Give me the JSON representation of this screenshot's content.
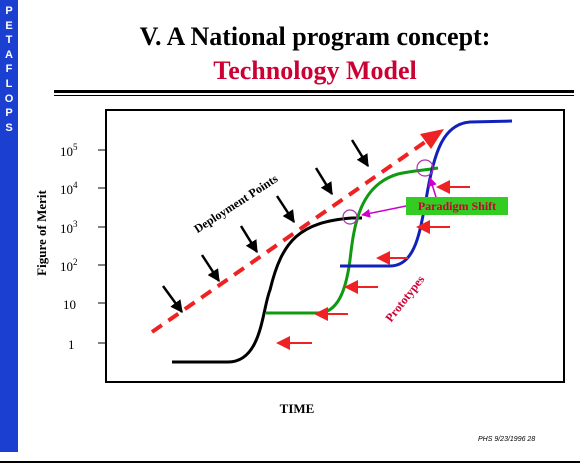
{
  "sidebar": {
    "letters": [
      "P",
      "E",
      "T",
      "A",
      "F",
      "L",
      "O",
      "P",
      "S"
    ],
    "color": "#1b3fd0"
  },
  "slide": {
    "title_line1": "V. A National program concept:",
    "title_line2": "Technology Model",
    "title_line2_color": "#cc0033",
    "footer": "PHS 9/23/1996    28"
  },
  "diagram": {
    "y_axis_label": "Figure of Merit",
    "x_axis_label": "TIME",
    "y_ticks": [
      {
        "base": "10",
        "exp": "5"
      },
      {
        "base": "10",
        "exp": "4"
      },
      {
        "base": "10",
        "exp": "3"
      },
      {
        "base": "10",
        "exp": "2"
      },
      {
        "base": "10",
        "exp": ""
      },
      {
        "base": "1",
        "exp": ""
      }
    ],
    "deployment_label": "Deployment Points",
    "prototypes_label": "Prototypes",
    "paradigm_label": "Paradigm Shift",
    "colors": {
      "curve1": "#000000",
      "curve2": "#119911",
      "curve3": "#1122bb",
      "trend": "#ee2222",
      "paradigm_box": "#33cc22",
      "paradigm_text": "#cc0033",
      "paradigm_arrow": "#cc00cc",
      "circle": "#aa33aa"
    }
  }
}
